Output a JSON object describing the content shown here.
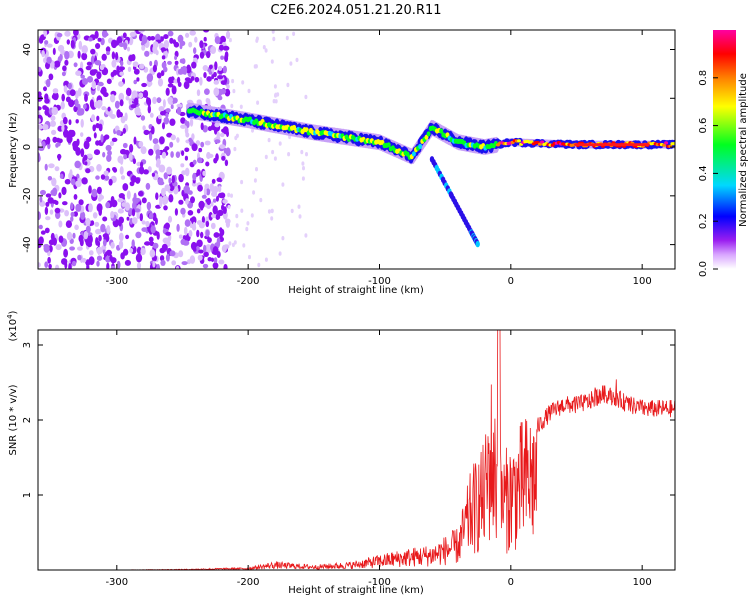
{
  "figure_title": "C2E6.2024.051.21.20.R11",
  "chart_data": [
    {
      "type": "heatmap",
      "title": "C2E6.2024.051.21.20.R11",
      "xlabel": "Height of straight line (km)",
      "ylabel": "Frequency (Hz)",
      "xlim": [
        -360,
        125
      ],
      "ylim": [
        -50,
        48
      ],
      "x_ticks": [
        -300,
        -200,
        -100,
        0,
        100
      ],
      "x_tick_labels": [
        "-300",
        "-200",
        "-100",
        "0",
        "100"
      ],
      "y_ticks": [
        -40,
        -20,
        0,
        20,
        40
      ],
      "y_tick_labels": [
        "-40",
        "-20",
        "0",
        "20",
        "40"
      ],
      "colorbar": {
        "label": "Normalized spectral amplitude",
        "range": [
          0.0,
          1.0
        ],
        "ticks": [
          0.0,
          0.2,
          0.4,
          0.6,
          0.8
        ],
        "tick_labels": [
          "0.0",
          "0.2",
          "0.4",
          "0.6",
          "0.8"
        ],
        "colors": [
          "#ffffff",
          "#a020f0",
          "#0000ff",
          "#00e5ff",
          "#00ff00",
          "#ffff00",
          "#ff8000",
          "#ff0000",
          "#ff00a0"
        ]
      },
      "ridge": {
        "description_points_x": [
          -245,
          -200,
          -150,
          -100,
          -75,
          -60,
          -40,
          -20,
          0,
          50,
          125
        ],
        "description_points_y": [
          15,
          11,
          6,
          2,
          -4,
          8,
          2,
          0,
          2,
          1,
          1
        ]
      },
      "branch": {
        "x": [
          -60,
          -45,
          -30,
          -25
        ],
        "y": [
          -5,
          -20,
          -35,
          -40
        ]
      },
      "noise_region_x": [
        -360,
        -215
      ]
    },
    {
      "type": "line",
      "xlabel": "Height of straight line (km)",
      "ylabel": "SNR (10 * v/v)",
      "yunit_label": "(x10",
      "yunit_exp": "4",
      "yunit_close": ")",
      "xlim": [
        -360,
        125
      ],
      "ylim": [
        0,
        3.2
      ],
      "x_ticks": [
        -300,
        -200,
        -100,
        0,
        100
      ],
      "x_tick_labels": [
        "-300",
        "-200",
        "-100",
        "0",
        "100"
      ],
      "y_ticks": [
        1,
        2,
        3
      ],
      "y_tick_labels": [
        "1",
        "2",
        "3"
      ],
      "color": "#e8191b",
      "x": [
        -360,
        -300,
        -250,
        -200,
        -180,
        -150,
        -120,
        -100,
        -80,
        -60,
        -40,
        -30,
        -20,
        -15,
        -10,
        -5,
        0,
        10,
        20,
        30,
        40,
        50,
        60,
        70,
        80,
        90,
        100,
        110,
        125
      ],
      "y": [
        0.0,
        0.0,
        0.01,
        0.03,
        0.1,
        0.06,
        0.1,
        0.18,
        0.25,
        0.3,
        0.5,
        1.2,
        1.5,
        2.3,
        1.6,
        1.4,
        1.5,
        1.8,
        1.9,
        2.1,
        2.2,
        2.2,
        2.25,
        2.35,
        2.3,
        2.2,
        2.15,
        2.15,
        2.15
      ]
    }
  ]
}
